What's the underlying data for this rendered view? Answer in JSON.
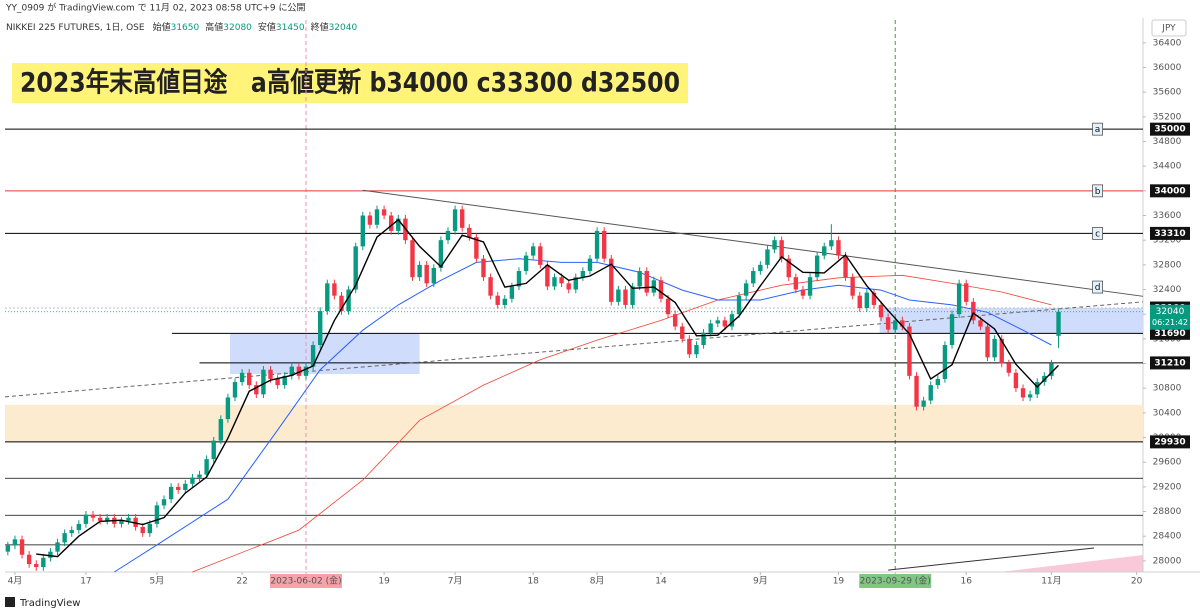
{
  "chart_data": {
    "type": "candlestick",
    "publisher": "YY_0909 が TradingView.com で 11月 02, 2023 08:58 UTC+9 に公開",
    "symbol": "NIKKEI 225 FUTURES, 1日, OSE",
    "ohlc_labels": [
      "始値",
      "高値",
      "安値",
      "終値"
    ],
    "title": "2023年末高値目途　a高値更新 b34000 c33300 d32500",
    "currency": "JPY",
    "brand": "TradingView",
    "up_color": "#089981",
    "down_color": "#f23645",
    "ylim": [
      27820,
      36770
    ],
    "yticks": [
      28000,
      28400,
      28800,
      29200,
      29600,
      30000,
      30400,
      30800,
      31200,
      31600,
      32000,
      32400,
      32800,
      33200,
      33600,
      34000,
      34400,
      34800,
      35200,
      35600,
      36000,
      36400
    ],
    "xlim": [
      -0.4,
      159.9
    ],
    "xticks": [
      {
        "value": 1,
        "label": "4月"
      },
      {
        "value": 11,
        "label": "17"
      },
      {
        "value": 21,
        "label": "5月"
      },
      {
        "value": 33,
        "label": "22"
      },
      {
        "value": 42,
        "label": "2023-06-02 (金)"
      },
      {
        "value": 53,
        "label": "19"
      },
      {
        "value": 63,
        "label": "7月"
      },
      {
        "value": 74,
        "label": "18"
      },
      {
        "value": 83,
        "label": "8月"
      },
      {
        "value": 92,
        "label": "14"
      },
      {
        "value": 106,
        "label": "9月"
      },
      {
        "value": 117,
        "label": "19"
      },
      {
        "value": 125,
        "label": "2023-09-29 (金)"
      },
      {
        "value": 135,
        "label": "16"
      },
      {
        "value": 147,
        "label": "11月"
      },
      {
        "value": 159,
        "label": "20"
      }
    ],
    "ohlc": [
      [
        28150,
        28310,
        28090,
        28250
      ],
      [
        28250,
        28410,
        28190,
        28350
      ],
      [
        28350,
        28410,
        28040,
        28100
      ],
      [
        28100,
        28160,
        27890,
        27950
      ],
      [
        27950,
        28010,
        27840,
        27900
      ],
      [
        27900,
        28110,
        27840,
        28050
      ],
      [
        28050,
        28210,
        27990,
        28150
      ],
      [
        28150,
        28360,
        28090,
        28300
      ],
      [
        28300,
        28510,
        28240,
        28450
      ],
      [
        28450,
        28560,
        28390,
        28500
      ],
      [
        28500,
        28660,
        28440,
        28600
      ],
      [
        28600,
        28810,
        28540,
        28750
      ],
      [
        28750,
        28810,
        28640,
        28700
      ],
      [
        28700,
        28760,
        28590,
        28650
      ],
      [
        28650,
        28760,
        28590,
        28700
      ],
      [
        28700,
        28760,
        28540,
        28600
      ],
      [
        28600,
        28710,
        28540,
        28650
      ],
      [
        28650,
        28760,
        28590,
        28700
      ],
      [
        28700,
        28760,
        28490,
        28550
      ],
      [
        28550,
        28610,
        28390,
        28450
      ],
      [
        28450,
        28660,
        28390,
        28600
      ],
      [
        28600,
        28960,
        28540,
        28900
      ],
      [
        28900,
        29060,
        28840,
        29000
      ],
      [
        29000,
        29260,
        28940,
        29200
      ],
      [
        29200,
        29260,
        29090,
        29150
      ],
      [
        29150,
        29310,
        29090,
        29250
      ],
      [
        29250,
        29410,
        29190,
        29350
      ],
      [
        29350,
        29460,
        29290,
        29400
      ],
      [
        29400,
        29710,
        29340,
        29650
      ],
      [
        29650,
        30010,
        29590,
        29950
      ],
      [
        29950,
        30360,
        29890,
        30300
      ],
      [
        30300,
        30710,
        30240,
        30650
      ],
      [
        30650,
        30960,
        30590,
        30900
      ],
      [
        30900,
        31110,
        30840,
        31050
      ],
      [
        31050,
        31110,
        30790,
        30850
      ],
      [
        30850,
        30910,
        30640,
        30700
      ],
      [
        30700,
        31160,
        30640,
        31100
      ],
      [
        31100,
        31160,
        30890,
        30950
      ],
      [
        30950,
        31010,
        30790,
        30850
      ],
      [
        30850,
        31060,
        30790,
        31000
      ],
      [
        31000,
        31210,
        30940,
        31150
      ],
      [
        31150,
        31210,
        30940,
        31000
      ],
      [
        31000,
        31210,
        30940,
        31150
      ],
      [
        31150,
        31560,
        31090,
        31500
      ],
      [
        31500,
        32110,
        31440,
        32050
      ],
      [
        32050,
        32560,
        31990,
        32500
      ],
      [
        32500,
        32560,
        32240,
        32300
      ],
      [
        32300,
        32360,
        31990,
        32050
      ],
      [
        32050,
        32460,
        31990,
        32400
      ],
      [
        32400,
        33160,
        32340,
        33100
      ],
      [
        33100,
        33660,
        33040,
        33600
      ],
      [
        33600,
        33660,
        33390,
        33450
      ],
      [
        33450,
        33760,
        33390,
        33700
      ],
      [
        33700,
        33760,
        33540,
        33600
      ],
      [
        33600,
        33660,
        33290,
        33350
      ],
      [
        33350,
        33610,
        33290,
        33550
      ],
      [
        33550,
        33610,
        33140,
        33200
      ],
      [
        33200,
        33260,
        32540,
        32600
      ],
      [
        32600,
        32860,
        32540,
        32800
      ],
      [
        32800,
        32860,
        32440,
        32500
      ],
      [
        32500,
        32810,
        32440,
        32750
      ],
      [
        32750,
        33260,
        32690,
        33200
      ],
      [
        33200,
        33410,
        33140,
        33350
      ],
      [
        33350,
        33760,
        33290,
        33700
      ],
      [
        33700,
        33760,
        33340,
        33400
      ],
      [
        33400,
        33460,
        33190,
        33250
      ],
      [
        33250,
        33310,
        32840,
        32900
      ],
      [
        32900,
        32960,
        32540,
        32600
      ],
      [
        32600,
        32660,
        32240,
        32300
      ],
      [
        32300,
        32360,
        32090,
        32150
      ],
      [
        32150,
        32310,
        32090,
        32250
      ],
      [
        32250,
        32510,
        32190,
        32450
      ],
      [
        32450,
        32760,
        32390,
        32700
      ],
      [
        32700,
        33010,
        32640,
        32950
      ],
      [
        32950,
        33160,
        32890,
        33100
      ],
      [
        33100,
        33160,
        32740,
        32800
      ],
      [
        32800,
        32860,
        32390,
        32450
      ],
      [
        32450,
        32660,
        32390,
        32600
      ],
      [
        32600,
        32660,
        32440,
        32500
      ],
      [
        32500,
        32560,
        32340,
        32400
      ],
      [
        32400,
        32660,
        32340,
        32600
      ],
      [
        32600,
        32760,
        32540,
        32700
      ],
      [
        32700,
        32960,
        32640,
        32900
      ],
      [
        32900,
        33410,
        32840,
        33350
      ],
      [
        33350,
        33410,
        32840,
        32900
      ],
      [
        32900,
        32960,
        32140,
        32200
      ],
      [
        32200,
        32460,
        32140,
        32400
      ],
      [
        32400,
        32460,
        32090,
        32150
      ],
      [
        32150,
        32510,
        32090,
        32450
      ],
      [
        32450,
        32760,
        32390,
        32700
      ],
      [
        32700,
        32760,
        32290,
        32350
      ],
      [
        32350,
        32610,
        32290,
        32550
      ],
      [
        32550,
        32610,
        32190,
        32250
      ],
      [
        32250,
        32310,
        31940,
        32000
      ],
      [
        32000,
        32060,
        31740,
        31800
      ],
      [
        31800,
        31860,
        31540,
        31600
      ],
      [
        31600,
        31660,
        31290,
        31350
      ],
      [
        31350,
        31560,
        31290,
        31500
      ],
      [
        31500,
        31760,
        31440,
        31700
      ],
      [
        31700,
        31910,
        31640,
        31850
      ],
      [
        31850,
        31960,
        31790,
        31900
      ],
      [
        31900,
        31960,
        31740,
        31800
      ],
      [
        31800,
        32060,
        31740,
        32000
      ],
      [
        32000,
        32360,
        31940,
        32300
      ],
      [
        32300,
        32560,
        32240,
        32500
      ],
      [
        32500,
        32760,
        32440,
        32700
      ],
      [
        32700,
        32860,
        32640,
        32800
      ],
      [
        32800,
        33110,
        32740,
        33050
      ],
      [
        33050,
        33260,
        32990,
        33200
      ],
      [
        33200,
        33260,
        32840,
        32900
      ],
      [
        32900,
        32960,
        32540,
        32600
      ],
      [
        32600,
        32660,
        32340,
        32400
      ],
      [
        32400,
        32460,
        32240,
        32300
      ],
      [
        32300,
        32660,
        32240,
        32600
      ],
      [
        32600,
        33010,
        32540,
        32950
      ],
      [
        32950,
        33160,
        32890,
        33100
      ],
      [
        33100,
        33460,
        33040,
        33200
      ],
      [
        33200,
        33260,
        32890,
        32950
      ],
      [
        32950,
        33010,
        32540,
        32600
      ],
      [
        32600,
        32660,
        32240,
        32300
      ],
      [
        32300,
        32360,
        32040,
        32100
      ],
      [
        32100,
        32410,
        32040,
        32350
      ],
      [
        32350,
        32410,
        32090,
        32150
      ],
      [
        32150,
        32210,
        31890,
        31950
      ],
      [
        31950,
        32010,
        31690,
        31750
      ],
      [
        31750,
        31960,
        31690,
        31900
      ],
      [
        31900,
        31960,
        31740,
        31800
      ],
      [
        31800,
        31860,
        30940,
        31000
      ],
      [
        31000,
        31060,
        30440,
        30500
      ],
      [
        30500,
        30660,
        30440,
        30600
      ],
      [
        30600,
        30910,
        30540,
        30850
      ],
      [
        30850,
        31010,
        30790,
        30950
      ],
      [
        30950,
        31560,
        30890,
        31500
      ],
      [
        31500,
        32060,
        31440,
        32000
      ],
      [
        32000,
        32560,
        31940,
        32500
      ],
      [
        32500,
        32560,
        32140,
        32200
      ],
      [
        32200,
        32260,
        31840,
        31900
      ],
      [
        31900,
        31960,
        31740,
        31800
      ],
      [
        31800,
        31860,
        31240,
        31300
      ],
      [
        31300,
        31660,
        31240,
        31600
      ],
      [
        31600,
        31660,
        31140,
        31200
      ],
      [
        31200,
        31260,
        30990,
        31050
      ],
      [
        31050,
        31110,
        30740,
        30800
      ],
      [
        30800,
        30860,
        30590,
        30650
      ],
      [
        30650,
        30760,
        30590,
        30700
      ],
      [
        30700,
        30960,
        30640,
        30900
      ],
      [
        30900,
        31060,
        30840,
        31000
      ],
      [
        31000,
        31260,
        30940,
        31200
      ],
      [
        31650,
        32080,
        31450,
        32040
      ]
    ],
    "moving_averages": [
      {
        "color": "#f44336",
        "width": 0.8,
        "x": [
          26,
          41,
          50,
          58,
          67,
          75,
          83,
          92,
          100,
          109,
          117,
          126,
          133,
          140,
          147
        ],
        "values": [
          27820,
          28500,
          29310,
          30280,
          30850,
          31260,
          31580,
          31900,
          32230,
          32470,
          32590,
          32630,
          32500,
          32360,
          32150
        ]
      },
      {
        "color": "#2962ff",
        "width": 1,
        "x": [
          15,
          21,
          31,
          38,
          44,
          50,
          55,
          61,
          66,
          72,
          78,
          83,
          89,
          95,
          100,
          106,
          112,
          117,
          123,
          127,
          133,
          138,
          143,
          147
        ],
        "values": [
          27820,
          28260,
          29000,
          30120,
          31100,
          31740,
          32150,
          32550,
          32840,
          32900,
          32840,
          32840,
          32680,
          32390,
          32230,
          32230,
          32390,
          32470,
          32390,
          32230,
          32150,
          32030,
          31740,
          31500
        ]
      },
      {
        "color": "#000000",
        "width": 1.4,
        "x": [
          4,
          7,
          10,
          13,
          16,
          19,
          22,
          25,
          28,
          31,
          34,
          37,
          40,
          43,
          46,
          49,
          52,
          55,
          58,
          61,
          64,
          67,
          70,
          73,
          76,
          79,
          82,
          85,
          88,
          91,
          94,
          97,
          100,
          103,
          106,
          109,
          112,
          115,
          118,
          121,
          124,
          127,
          130,
          133,
          136,
          139,
          142,
          145,
          148
        ],
        "values": [
          28110,
          28070,
          28400,
          28640,
          28660,
          28590,
          28700,
          29100,
          29360,
          29990,
          30750,
          30930,
          31010,
          31160,
          31900,
          32470,
          33250,
          33530,
          33100,
          32770,
          33280,
          33170,
          32440,
          32500,
          32800,
          32550,
          32620,
          32810,
          32420,
          32440,
          32190,
          31650,
          31660,
          31970,
          32460,
          32930,
          32680,
          32670,
          32960,
          32460,
          32060,
          31680,
          30950,
          31180,
          32020,
          31760,
          31190,
          30820,
          31170
        ]
      }
    ],
    "zones": [
      {
        "x0": -0.4,
        "x1": 159.9,
        "y0": 29930,
        "y1": 30530,
        "color": "#fdebd0"
      },
      {
        "x0": 31.3,
        "x1": 58,
        "y0": 31030,
        "y1": 31690,
        "color": "#cfdcfb"
      },
      {
        "x0": 122.8,
        "x1": 159.9,
        "y0": 31690,
        "y1": 32100,
        "color": "#cfdcfb"
      }
    ],
    "levels": [
      {
        "value": 35000,
        "color": "#000000"
      },
      {
        "value": 34000,
        "color": "#e53935"
      },
      {
        "value": 33310,
        "color": "#000000"
      },
      {
        "value": 32100,
        "color": "#bdbdbd",
        "dash": "2 2"
      },
      {
        "value": 31690,
        "color": "#000000",
        "from": 23.1
      },
      {
        "value": 31210,
        "color": "#000000",
        "from": 27
      },
      {
        "value": 29930,
        "color": "#000000"
      }
    ],
    "lines": [
      {
        "value": 29340,
        "color": "#000000"
      },
      {
        "value": 28740,
        "color": "#000000"
      },
      {
        "value": 28260,
        "color": "#000000"
      }
    ],
    "vlines": [
      {
        "x": 42,
        "color": "#f48fb1",
        "label_bg": "#f7a1a8"
      },
      {
        "x": 125,
        "color": "#43a047",
        "label_bg": "#81c784"
      }
    ],
    "trendlines": [
      {
        "points": [
          [
            50,
            34010
          ],
          [
            159.9,
            32290
          ]
        ],
        "color": "#555555"
      },
      {
        "points": [
          [
            -0.4,
            30660
          ],
          [
            159.9,
            32200
          ]
        ],
        "color": "#666666",
        "dash": "4 3"
      },
      {
        "points": [
          [
            124,
            27850
          ],
          [
            153,
            28210
          ]
        ],
        "color": "#333333"
      }
    ],
    "last": {
      "value": 32040,
      "countdown": "06:21:42",
      "color": "#089981"
    },
    "annotations": [
      {
        "text": "a",
        "x": 153.5,
        "y": 35000
      },
      {
        "text": "b",
        "x": 153.5,
        "y": 34000
      },
      {
        "text": "c",
        "x": 153.5,
        "y": 33310
      },
      {
        "text": "d",
        "x": 153.5,
        "y": 32440
      }
    ]
  }
}
